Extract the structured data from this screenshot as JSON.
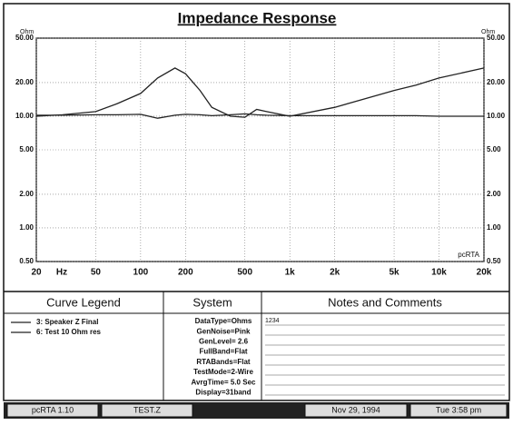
{
  "chart_data": {
    "type": "line",
    "title": "Impedance Response",
    "y_unit_left": "Ohm",
    "y_unit_right": "Ohm",
    "x_unit": "Hz",
    "watermark": "pcRTA",
    "log_x": true,
    "log_y": true,
    "grid": true,
    "x": [
      20,
      30,
      50,
      70,
      100,
      130,
      170,
      200,
      250,
      300,
      400,
      500,
      600,
      700,
      1000,
      2000,
      3000,
      5000,
      7000,
      10000,
      20000
    ],
    "series": [
      {
        "name": "3: Speaker Z Final",
        "color": "#222222",
        "values": [
          10,
          10.3,
          11,
          13,
          16,
          22,
          27,
          24,
          17,
          12,
          10,
          9.8,
          11.5,
          11,
          10,
          12,
          14,
          17,
          19,
          22,
          27
        ]
      },
      {
        "name": "6: Test 10 Ohm res",
        "color": "#222222",
        "values": [
          10.2,
          10.2,
          10.3,
          10.3,
          10.4,
          9.6,
          10.2,
          10.4,
          10.3,
          10.1,
          10.3,
          10.5,
          10.3,
          10.2,
          10.1,
          10.1,
          10.1,
          10.1,
          10.1,
          10,
          10
        ]
      }
    ],
    "xlim": [
      20,
      20000
    ],
    "xticks": [
      20,
      50,
      100,
      200,
      500,
      {
        "value": 1000,
        "label": "1k"
      },
      {
        "value": 2000,
        "label": "2k"
      },
      {
        "value": 5000,
        "label": "5k"
      },
      {
        "value": 10000,
        "label": "10k"
      },
      {
        "value": 20000,
        "label": "20k"
      }
    ],
    "ylim": [
      0.5,
      50
    ],
    "yticks": [
      {
        "value": 0.5,
        "label": "0.50"
      },
      {
        "value": 1,
        "label": "1.00"
      },
      {
        "value": 2,
        "label": "2.00"
      },
      {
        "value": 5,
        "label": "5.00"
      },
      {
        "value": 10,
        "label": "10.00"
      },
      {
        "value": 20,
        "label": "20.00"
      },
      {
        "value": 50,
        "label": "50.00"
      }
    ]
  },
  "legend_panel": {
    "title": "Curve Legend"
  },
  "system_panel": {
    "title": "System",
    "lines": [
      "DataType=Ohms",
      "GenNoise=Pink",
      "GenLevel=  2.6",
      "FullBand=Flat",
      "RTABands=Flat",
      "TestMode=2-Wire",
      "AvrgTime= 5.0 Sec",
      "Display=31band"
    ]
  },
  "notes_panel": {
    "title": "Notes and Comments",
    "text": "1234"
  },
  "status_bar": [
    "pcRTA 1.10",
    "TEST.Z",
    "Nov 29, 1994",
    "Tue  3:58 pm"
  ]
}
